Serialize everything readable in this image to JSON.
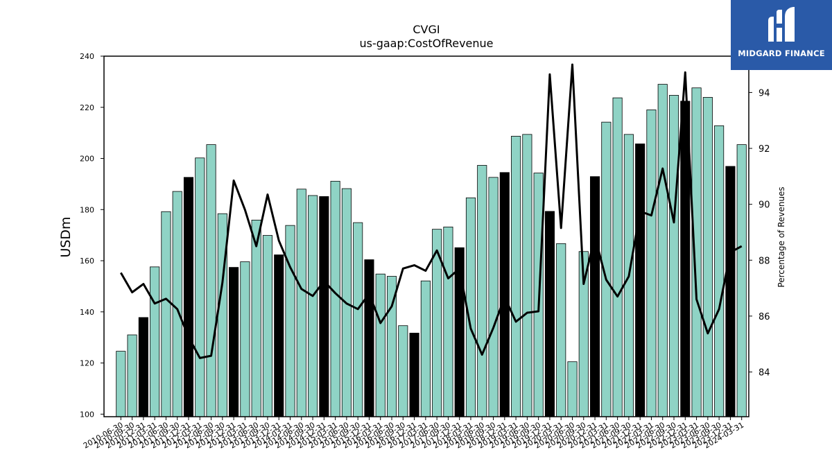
{
  "logo": {
    "text": "MIDGARD FINANCE"
  },
  "colors": {
    "bar": "#8fd3c5",
    "bar_highlight": "#000000",
    "line": "#000000",
    "logo_bg": "#2a5aa8"
  },
  "chart_data": {
    "type": "bar",
    "title": "CVGI",
    "subtitle": "us-gaap:CostOfRevenue",
    "ylabel": "USDm",
    "y2label": "Percentage of Revenues",
    "ylim": [
      99,
      240
    ],
    "y2lim": [
      82.4,
      95.3
    ],
    "yticks": [
      100,
      120,
      140,
      160,
      180,
      200,
      220,
      240
    ],
    "y2ticks": [
      84,
      86,
      88,
      90,
      92,
      94
    ],
    "categories": [
      "2010-06-30",
      "2010-09-30",
      "2010-12-31",
      "2011-03-31",
      "2011-06-30",
      "2011-09-30",
      "2011-12-31",
      "2012-03-31",
      "2012-06-30",
      "2012-09-30",
      "2012-12-31",
      "2013-03-31",
      "2013-06-30",
      "2013-09-30",
      "2013-12-31",
      "2014-03-31",
      "2014-06-30",
      "2014-09-30",
      "2014-12-31",
      "2015-03-31",
      "2015-06-30",
      "2015-09-30",
      "2015-12-31",
      "2016-03-31",
      "2016-06-30",
      "2016-09-30",
      "2016-12-31",
      "2017-03-31",
      "2017-06-30",
      "2017-09-30",
      "2017-12-31",
      "2018-03-31",
      "2018-06-30",
      "2018-09-30",
      "2018-12-31",
      "2019-03-31",
      "2019-06-30",
      "2019-09-30",
      "2019-12-31",
      "2020-03-31",
      "2020-06-30",
      "2020-09-30",
      "2020-12-31",
      "2021-03-31",
      "2021-06-30",
      "2021-09-30",
      "2021-12-31",
      "2022-03-31",
      "2022-06-30",
      "2022-09-30",
      "2022-12-31",
      "2023-03-31",
      "2023-06-30",
      "2023-09-30",
      "2023-12-31",
      "2024-03-31"
    ],
    "highlight_rule": "fiscal year end (Dec 31) quarters drawn black",
    "series": [
      {
        "kind": "bar",
        "values": [
          124.6,
          131.0,
          137.8,
          157.6,
          179.2,
          187.1,
          192.6,
          200.2,
          205.4,
          178.4,
          157.4,
          159.6,
          175.9,
          169.9,
          162.3,
          173.8,
          188.0,
          185.5,
          185.1,
          191.1,
          188.2,
          174.9,
          160.4,
          154.8,
          153.9,
          134.6,
          131.7,
          152.1,
          172.3,
          173.2,
          165.1,
          184.6,
          197.3,
          192.6,
          194.5,
          208.7,
          209.4,
          194.3,
          179.3,
          166.7,
          120.5,
          163.6,
          192.9,
          214.2,
          223.7,
          209.4,
          205.7,
          219.0,
          229.0,
          224.7,
          222.4,
          227.6,
          223.9,
          212.8,
          196.9,
          205.4
        ]
      },
      {
        "kind": "line",
        "axis": "right",
        "values": [
          87.55,
          86.85,
          87.15,
          86.45,
          86.62,
          86.25,
          85.25,
          84.5,
          84.58,
          87.2,
          90.85,
          89.8,
          88.5,
          90.35,
          88.7,
          87.75,
          86.97,
          86.72,
          87.25,
          86.82,
          86.45,
          86.25,
          86.8,
          85.75,
          86.35,
          87.7,
          87.82,
          87.62,
          88.35,
          87.35,
          87.7,
          85.55,
          84.62,
          85.58,
          86.68,
          85.8,
          86.12,
          86.17,
          94.65,
          89.15,
          95.0,
          87.15,
          88.85,
          87.3,
          86.7,
          87.42,
          89.75,
          89.6,
          91.28,
          89.35,
          94.72,
          86.6,
          85.38,
          86.25,
          88.28,
          88.5
        ]
      }
    ]
  }
}
